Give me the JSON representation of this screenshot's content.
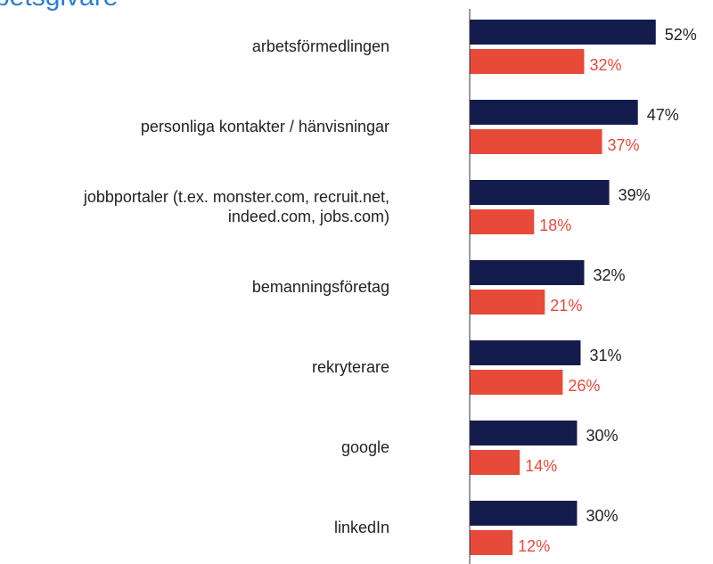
{
  "chart_data": {
    "type": "hbar_grouped",
    "title": "betsgivare",
    "categories": [
      "arbetsförmedlingen",
      "personliga kontakter / hänvisningar",
      "jobbportaler (t.ex. monster.com, recruit.net,\nindeed.com, jobs.com)",
      "bemanningsföretag",
      "rekryterare",
      "google",
      "linkedIn"
    ],
    "series": [
      {
        "color": "#141b4d",
        "values": [
          52,
          47,
          39,
          32,
          31,
          30,
          30
        ],
        "value_labels": [
          "52%",
          "47%",
          "39%",
          "32%",
          "31%",
          "30%",
          "30%"
        ]
      },
      {
        "color": "#e84a3a",
        "values": [
          32,
          37,
          18,
          21,
          26,
          14,
          12
        ],
        "value_labels": [
          "32%",
          "37%",
          "18%",
          "21%",
          "26%",
          "14%",
          "12%"
        ]
      }
    ],
    "xlim": [
      0,
      68
    ]
  }
}
